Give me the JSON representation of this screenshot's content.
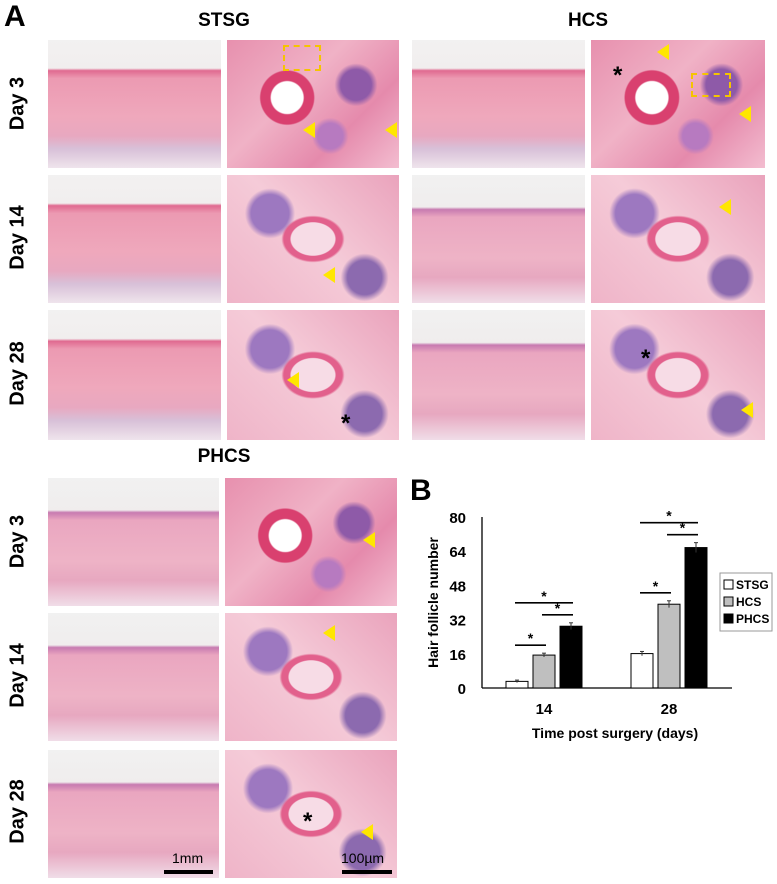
{
  "panel_a_label": "A",
  "panel_b_label": "B",
  "groups": {
    "stsg": "STSG",
    "hcs": "HCS",
    "phcs": "PHCS"
  },
  "rows": {
    "day3": "Day 3",
    "day14": "Day 14",
    "day28": "Day 28"
  },
  "markers": {
    "asterisk": "*"
  },
  "scale_bars": {
    "low": "1mm",
    "high": "100µm"
  },
  "colors": {
    "arrow": "#ffe600",
    "dashed_box": "#f5c400",
    "stsg": "#ffffff",
    "hcs": "#bfbfbf",
    "phcs": "#000000"
  },
  "chart_data": {
    "type": "bar",
    "categories": [
      "14",
      "28"
    ],
    "series": [
      {
        "name": "STSG",
        "values": [
          3.1,
          16.1
        ],
        "errors": [
          0.6,
          1.0
        ]
      },
      {
        "name": "HCS",
        "values": [
          15.4,
          39.2
        ],
        "errors": [
          0.9,
          1.6
        ]
      },
      {
        "name": "PHCS",
        "values": [
          28.9,
          65.7
        ],
        "errors": [
          1.6,
          2.3
        ]
      }
    ],
    "xlabel": "Time post surgery (days)",
    "ylabel": "Hair follicle number",
    "ylim": [
      0,
      80
    ],
    "yticks": [
      "0",
      "16",
      "32",
      "48",
      "64",
      "80"
    ],
    "legend": "right",
    "grid": false,
    "significance": [
      {
        "category": "14",
        "between": [
          "STSG",
          "HCS"
        ],
        "label": "*"
      },
      {
        "category": "14",
        "between": [
          "HCS",
          "PHCS"
        ],
        "label": "*"
      },
      {
        "category": "14",
        "between": [
          "STSG",
          "PHCS"
        ],
        "label": "*"
      },
      {
        "category": "28",
        "between": [
          "STSG",
          "HCS"
        ],
        "label": "*"
      },
      {
        "category": "28",
        "between": [
          "HCS",
          "PHCS"
        ],
        "label": "*"
      },
      {
        "category": "28",
        "between": [
          "STSG",
          "PHCS"
        ],
        "label": "*"
      }
    ]
  }
}
